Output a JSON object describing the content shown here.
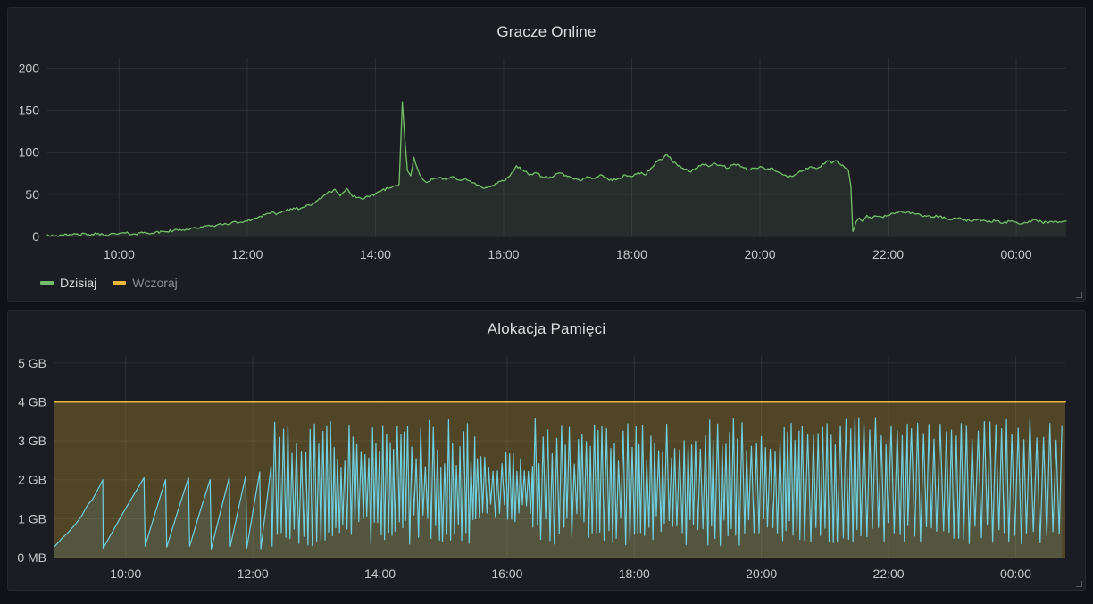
{
  "theme": {
    "page_bg": "#111217",
    "panel_bg": "#1B1D22",
    "panel_border": "#26282E",
    "grid_color": "rgba(204,204,220,0.10)",
    "tick_text_color": "#C7C8CA",
    "title_color": "#DCDDDE",
    "legend_active_color": "#D8D9DA",
    "legend_inactive_color": "#8A8C90",
    "green": "#73BF69",
    "yellow": "#EAB839",
    "cyan": "#6ED0E0",
    "handle_color": "#60646C"
  },
  "panels": [
    {
      "title": "Gracze Online"
    },
    {
      "title": "Alokacja Pamięci"
    }
  ],
  "chart_data": [
    {
      "type": "line",
      "title": "Gracze Online",
      "x_domain": [
        8.88,
        24.78
      ],
      "y_domain": [
        0,
        212
      ],
      "grid": true,
      "legend_position": "bottom-left",
      "x_ticks": [
        {
          "v": 10,
          "label": "10:00"
        },
        {
          "v": 12,
          "label": "12:00"
        },
        {
          "v": 14,
          "label": "14:00"
        },
        {
          "v": 16,
          "label": "16:00"
        },
        {
          "v": 18,
          "label": "18:00"
        },
        {
          "v": 20,
          "label": "20:00"
        },
        {
          "v": 22,
          "label": "22:00"
        },
        {
          "v": 24,
          "label": "00:00"
        }
      ],
      "y_ticks": [
        {
          "v": 0,
          "label": "0"
        },
        {
          "v": 50,
          "label": "50"
        },
        {
          "v": 100,
          "label": "100"
        },
        {
          "v": 150,
          "label": "150"
        },
        {
          "v": 200,
          "label": "200"
        }
      ],
      "legend": [
        {
          "label": "Dzisiaj",
          "color": "#73BF69",
          "active": true
        },
        {
          "label": "Wczoraj",
          "color": "#EAB839",
          "active": false
        }
      ],
      "series": [
        {
          "legend_label": "Dzisiaj",
          "color": "#73BF69",
          "width": 1.3,
          "fill_opacity": 0.11,
          "jitter": 1.6,
          "seed": 42,
          "points": [
            [
              8.88,
              2
            ],
            [
              9.0,
              1
            ],
            [
              9.1,
              2
            ],
            [
              9.2,
              1
            ],
            [
              9.35,
              3
            ],
            [
              9.5,
              2
            ],
            [
              9.65,
              3
            ],
            [
              9.8,
              2
            ],
            [
              9.95,
              3
            ],
            [
              10.1,
              4
            ],
            [
              10.25,
              3
            ],
            [
              10.4,
              5
            ],
            [
              10.55,
              4
            ],
            [
              10.7,
              6
            ],
            [
              10.85,
              7
            ],
            [
              11.0,
              8
            ],
            [
              11.15,
              10
            ],
            [
              11.3,
              11
            ],
            [
              11.45,
              13
            ],
            [
              11.6,
              14
            ],
            [
              11.75,
              16
            ],
            [
              11.9,
              17
            ],
            [
              12.0,
              18
            ],
            [
              12.1,
              21
            ],
            [
              12.2,
              24
            ],
            [
              12.3,
              27
            ],
            [
              12.4,
              29
            ],
            [
              12.45,
              26
            ],
            [
              12.55,
              30
            ],
            [
              12.7,
              32
            ],
            [
              12.85,
              34
            ],
            [
              13.0,
              37
            ],
            [
              13.1,
              43
            ],
            [
              13.2,
              49
            ],
            [
              13.3,
              53
            ],
            [
              13.37,
              56
            ],
            [
              13.45,
              48
            ],
            [
              13.55,
              57
            ],
            [
              13.62,
              50
            ],
            [
              13.7,
              46
            ],
            [
              13.8,
              44
            ],
            [
              13.9,
              47
            ],
            [
              14.0,
              51
            ],
            [
              14.1,
              55
            ],
            [
              14.2,
              57
            ],
            [
              14.3,
              60
            ],
            [
              14.37,
              62
            ],
            [
              14.42,
              160
            ],
            [
              14.46,
              115
            ],
            [
              14.5,
              78
            ],
            [
              14.55,
              72
            ],
            [
              14.6,
              94
            ],
            [
              14.66,
              80
            ],
            [
              14.72,
              70
            ],
            [
              14.8,
              64
            ],
            [
              14.9,
              68
            ],
            [
              15.0,
              70
            ],
            [
              15.1,
              67
            ],
            [
              15.2,
              71
            ],
            [
              15.3,
              67
            ],
            [
              15.4,
              69
            ],
            [
              15.5,
              64
            ],
            [
              15.6,
              61
            ],
            [
              15.7,
              57
            ],
            [
              15.8,
              59
            ],
            [
              15.9,
              63
            ],
            [
              16.0,
              66
            ],
            [
              16.1,
              72
            ],
            [
              16.2,
              84
            ],
            [
              16.3,
              79
            ],
            [
              16.4,
              73
            ],
            [
              16.5,
              76
            ],
            [
              16.6,
              71
            ],
            [
              16.7,
              69
            ],
            [
              16.8,
              73
            ],
            [
              16.9,
              75
            ],
            [
              17.0,
              71
            ],
            [
              17.1,
              68
            ],
            [
              17.2,
              66
            ],
            [
              17.3,
              71
            ],
            [
              17.4,
              69
            ],
            [
              17.5,
              73
            ],
            [
              17.6,
              70
            ],
            [
              17.7,
              66
            ],
            [
              17.8,
              69
            ],
            [
              17.9,
              73
            ],
            [
              18.0,
              71
            ],
            [
              18.1,
              76
            ],
            [
              18.2,
              73
            ],
            [
              18.3,
              81
            ],
            [
              18.4,
              89
            ],
            [
              18.5,
              94
            ],
            [
              18.55,
              97
            ],
            [
              18.62,
              91
            ],
            [
              18.7,
              86
            ],
            [
              18.8,
              81
            ],
            [
              18.9,
              77
            ],
            [
              19.0,
              81
            ],
            [
              19.1,
              86
            ],
            [
              19.2,
              83
            ],
            [
              19.3,
              87
            ],
            [
              19.4,
              84
            ],
            [
              19.5,
              81
            ],
            [
              19.6,
              86
            ],
            [
              19.7,
              83
            ],
            [
              19.8,
              79
            ],
            [
              19.9,
              81
            ],
            [
              20.0,
              83
            ],
            [
              20.1,
              79
            ],
            [
              20.2,
              81
            ],
            [
              20.3,
              76
            ],
            [
              20.4,
              73
            ],
            [
              20.5,
              71
            ],
            [
              20.6,
              76
            ],
            [
              20.7,
              79
            ],
            [
              20.8,
              83
            ],
            [
              20.9,
              81
            ],
            [
              21.0,
              86
            ],
            [
              21.05,
              90
            ],
            [
              21.12,
              87
            ],
            [
              21.18,
              90
            ],
            [
              21.25,
              86
            ],
            [
              21.32,
              82
            ],
            [
              21.38,
              79
            ],
            [
              21.42,
              60
            ],
            [
              21.45,
              6
            ],
            [
              21.5,
              17
            ],
            [
              21.55,
              22
            ],
            [
              21.6,
              18
            ],
            [
              21.67,
              25
            ],
            [
              21.74,
              21
            ],
            [
              21.82,
              24
            ],
            [
              21.9,
              23
            ],
            [
              22.0,
              25
            ],
            [
              22.1,
              27
            ],
            [
              22.2,
              30
            ],
            [
              22.3,
              29
            ],
            [
              22.4,
              27
            ],
            [
              22.5,
              26
            ],
            [
              22.6,
              24
            ],
            [
              22.7,
              23
            ],
            [
              22.8,
              24
            ],
            [
              22.9,
              21
            ],
            [
              23.0,
              20
            ],
            [
              23.1,
              22
            ],
            [
              23.2,
              20
            ],
            [
              23.3,
              18
            ],
            [
              23.4,
              20
            ],
            [
              23.5,
              19
            ],
            [
              23.6,
              17
            ],
            [
              23.7,
              19
            ],
            [
              23.8,
              16
            ],
            [
              23.9,
              18
            ],
            [
              24.0,
              17
            ],
            [
              24.1,
              15
            ],
            [
              24.2,
              18
            ],
            [
              24.3,
              20
            ],
            [
              24.4,
              17
            ],
            [
              24.5,
              16
            ],
            [
              24.6,
              18
            ],
            [
              24.7,
              17
            ],
            [
              24.78,
              18
            ]
          ]
        }
      ]
    },
    {
      "type": "line",
      "title": "Alokacja Pamięci",
      "x_domain": [
        8.88,
        24.78
      ],
      "y_domain": [
        0,
        5.18
      ],
      "grid": true,
      "x_ticks": [
        {
          "v": 10,
          "label": "10:00"
        },
        {
          "v": 12,
          "label": "12:00"
        },
        {
          "v": 14,
          "label": "14:00"
        },
        {
          "v": 16,
          "label": "16:00"
        },
        {
          "v": 18,
          "label": "18:00"
        },
        {
          "v": 20,
          "label": "20:00"
        },
        {
          "v": 22,
          "label": "22:00"
        },
        {
          "v": 24,
          "label": "00:00"
        }
      ],
      "y_ticks": [
        {
          "v": 0,
          "label": "0 MB"
        },
        {
          "v": 1,
          "label": "1 GB"
        },
        {
          "v": 2,
          "label": "2 GB"
        },
        {
          "v": 3,
          "label": "3 GB"
        },
        {
          "v": 4,
          "label": "4 GB"
        },
        {
          "v": 5,
          "label": "5 GB"
        }
      ],
      "series": [
        {
          "color": "#EAB839",
          "width": 2,
          "fill_opacity": 0.26,
          "points": [
            [
              8.88,
              4
            ],
            [
              24.78,
              4
            ]
          ]
        },
        {
          "color": "#6ED0E0",
          "width": 1.2,
          "fill_opacity": 0.12,
          "generator": {
            "seed": 7,
            "trough_base": 0.22,
            "lead_points": [
              [
                8.88,
                0.28
              ],
              [
                9.0,
                0.5
              ],
              [
                9.08,
                0.62
              ],
              [
                9.18,
                0.8
              ],
              [
                9.3,
                1.05
              ],
              [
                9.4,
                1.35
              ],
              [
                9.48,
                1.5
              ],
              [
                9.58,
                1.8
              ],
              [
                9.64,
                2.0
              ]
            ],
            "teeth": [
              [
                9.64,
                10.3,
                2.05
              ],
              [
                10.3,
                10.64,
                2.0
              ],
              [
                10.64,
                11.0,
                2.05
              ],
              [
                11.0,
                11.34,
                2.0
              ],
              [
                11.34,
                11.64,
                2.05
              ],
              [
                11.64,
                11.9,
                2.1
              ],
              [
                11.9,
                12.12,
                2.2
              ],
              [
                12.12,
                12.3,
                2.35
              ]
            ],
            "dense": [
              {
                "t0": 12.3,
                "t1": 13.3,
                "period": [
                  0.05,
                  0.08
                ],
                "peak": [
                  2.6,
                  3.5
                ],
                "trough": [
                  0.25,
                  0.9
                ]
              },
              {
                "t0": 13.3,
                "t1": 15.5,
                "period": [
                  0.045,
                  0.075
                ],
                "peak": [
                  2.3,
                  3.55
                ],
                "trough": [
                  0.3,
                  1.1
                ]
              },
              {
                "t0": 15.5,
                "t1": 16.4,
                "period": [
                  0.05,
                  0.08
                ],
                "peak": [
                  2.2,
                  2.7
                ],
                "trough": [
                  0.85,
                  1.4
                ]
              },
              {
                "t0": 16.4,
                "t1": 18.6,
                "period": [
                  0.045,
                  0.08
                ],
                "peak": [
                  2.4,
                  3.6
                ],
                "trough": [
                  0.3,
                  1.15
                ]
              },
              {
                "t0": 18.6,
                "t1": 20.6,
                "period": [
                  0.05,
                  0.09
                ],
                "peak": [
                  2.6,
                  3.6
                ],
                "trough": [
                  0.3,
                  1.0
                ]
              },
              {
                "t0": 20.6,
                "t1": 22.3,
                "period": [
                  0.06,
                  0.1
                ],
                "peak": [
                  2.8,
                  3.6
                ],
                "trough": [
                  0.35,
                  0.95
                ]
              },
              {
                "t0": 22.3,
                "t1": 24.78,
                "period": [
                  0.07,
                  0.11
                ],
                "peak": [
                  3.0,
                  3.6
                ],
                "trough": [
                  0.35,
                  0.85
                ]
              }
            ]
          }
        }
      ]
    }
  ]
}
